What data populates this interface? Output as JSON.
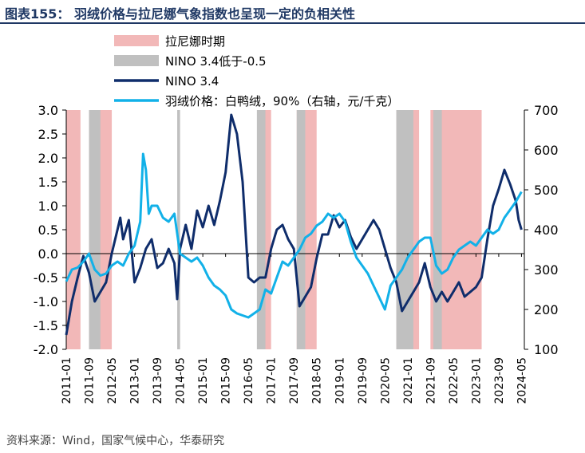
{
  "title": "图表155：  羽绒价格与拉尼娜气象指数也呈现一定的负相关性",
  "source": "资料来源：Wind，国家气候中心，华泰研究",
  "chart_data": {
    "type": "line",
    "legend": [
      {
        "name": "拉尼娜时期",
        "type": "band",
        "color": "#f2b8b8"
      },
      {
        "name": "NINO 3.4低于-0.5",
        "type": "band",
        "color": "#c0c0c0"
      },
      {
        "name": "NINO 3.4",
        "type": "line",
        "color": "#0f2d6b"
      },
      {
        "name": "羽绒价格：白鸭绒，90%（右轴，元/千克）",
        "type": "line",
        "color": "#12b1e8"
      }
    ],
    "y_left": {
      "min": -2.0,
      "max": 3.0,
      "ticks": [
        "3.0",
        "2.5",
        "2.0",
        "1.5",
        "1.0",
        "0.5",
        "0.0",
        "-0.5",
        "-1.0",
        "-1.5",
        "-2.0"
      ]
    },
    "y_right": {
      "min": 100,
      "max": 700,
      "ticks": [
        "700",
        "600",
        "500",
        "400",
        "300",
        "200",
        "100"
      ]
    },
    "x_range": [
      "2011-01",
      "2024-06"
    ],
    "x_ticks": [
      "2011-01",
      "2011-09",
      "2012-05",
      "2013-01",
      "2013-09",
      "2014-05",
      "2015-01",
      "2015-09",
      "2016-05",
      "2017-01",
      "2017-09",
      "2018-05",
      "2019-01",
      "2019-09",
      "2020-05",
      "2021-01",
      "2021-09",
      "2022-05",
      "2023-01",
      "2023-09",
      "2024-05"
    ],
    "la_nina_periods": [
      [
        "2011-01",
        "2011-05"
      ],
      [
        "2011-09",
        "2012-04"
      ],
      [
        "2016-09",
        "2016-12"
      ],
      [
        "2017-10",
        "2018-04"
      ],
      [
        "2020-09",
        "2021-04"
      ],
      [
        "2021-09",
        "2023-02"
      ]
    ],
    "nino_below_periods": [
      [
        "2011-09",
        "2011-12"
      ],
      [
        "2014-04",
        "2014-04"
      ],
      [
        "2016-08",
        "2016-10"
      ],
      [
        "2017-10",
        "2017-12"
      ],
      [
        "2020-09",
        "2021-02"
      ],
      [
        "2021-10",
        "2021-12"
      ]
    ],
    "series": [
      {
        "name": "NINO 3.4",
        "axis": "left",
        "points": [
          [
            "2011-01",
            -1.7
          ],
          [
            "2011-03",
            -1.0
          ],
          [
            "2011-05",
            -0.5
          ],
          [
            "2011-07",
            -0.05
          ],
          [
            "2011-09",
            -0.4
          ],
          [
            "2011-11",
            -1.0
          ],
          [
            "2012-01",
            -0.8
          ],
          [
            "2012-03",
            -0.6
          ],
          [
            "2012-05",
            0.0
          ],
          [
            "2012-07",
            0.5
          ],
          [
            "2012-08",
            0.75
          ],
          [
            "2012-09",
            0.3
          ],
          [
            "2012-11",
            0.7
          ],
          [
            "2013-01",
            -0.6
          ],
          [
            "2013-03",
            -0.3
          ],
          [
            "2013-05",
            0.1
          ],
          [
            "2013-07",
            0.3
          ],
          [
            "2013-09",
            -0.3
          ],
          [
            "2013-11",
            -0.2
          ],
          [
            "2014-01",
            0.1
          ],
          [
            "2014-03",
            -0.2
          ],
          [
            "2014-04",
            -0.95
          ],
          [
            "2014-05",
            0.1
          ],
          [
            "2014-07",
            0.6
          ],
          [
            "2014-09",
            0.1
          ],
          [
            "2014-11",
            0.9
          ],
          [
            "2015-01",
            0.55
          ],
          [
            "2015-03",
            1.0
          ],
          [
            "2015-05",
            0.6
          ],
          [
            "2015-07",
            1.1
          ],
          [
            "2015-09",
            1.7
          ],
          [
            "2015-11",
            2.9
          ],
          [
            "2016-01",
            2.5
          ],
          [
            "2016-03",
            1.5
          ],
          [
            "2016-05",
            -0.5
          ],
          [
            "2016-07",
            -0.6
          ],
          [
            "2016-09",
            -0.5
          ],
          [
            "2016-11",
            -0.5
          ],
          [
            "2017-01",
            0.1
          ],
          [
            "2017-03",
            0.5
          ],
          [
            "2017-05",
            0.6
          ],
          [
            "2017-07",
            0.3
          ],
          [
            "2017-09",
            0.1
          ],
          [
            "2017-11",
            -1.1
          ],
          [
            "2018-01",
            -0.9
          ],
          [
            "2018-03",
            -0.7
          ],
          [
            "2018-05",
            -0.1
          ],
          [
            "2018-07",
            0.4
          ],
          [
            "2018-09",
            0.4
          ],
          [
            "2018-11",
            0.8
          ],
          [
            "2019-01",
            0.55
          ],
          [
            "2019-03",
            0.7
          ],
          [
            "2019-05",
            0.35
          ],
          [
            "2019-07",
            0.1
          ],
          [
            "2019-09",
            0.3
          ],
          [
            "2019-11",
            0.5
          ],
          [
            "2020-01",
            0.7
          ],
          [
            "2020-03",
            0.5
          ],
          [
            "2020-05",
            0.1
          ],
          [
            "2020-07",
            -0.3
          ],
          [
            "2020-09",
            -0.6
          ],
          [
            "2020-11",
            -1.2
          ],
          [
            "2021-01",
            -1.0
          ],
          [
            "2021-03",
            -0.8
          ],
          [
            "2021-05",
            -0.6
          ],
          [
            "2021-07",
            -0.2
          ],
          [
            "2021-09",
            -0.7
          ],
          [
            "2021-11",
            -1.0
          ],
          [
            "2022-01",
            -0.8
          ],
          [
            "2022-03",
            -1.0
          ],
          [
            "2022-05",
            -0.8
          ],
          [
            "2022-07",
            -0.6
          ],
          [
            "2022-09",
            -0.9
          ],
          [
            "2022-11",
            -0.8
          ],
          [
            "2023-01",
            -0.7
          ],
          [
            "2023-03",
            -0.5
          ],
          [
            "2023-05",
            0.3
          ],
          [
            "2023-07",
            1.0
          ],
          [
            "2023-09",
            1.35
          ],
          [
            "2023-11",
            1.75
          ],
          [
            "2024-01",
            1.45
          ],
          [
            "2024-03",
            1.1
          ],
          [
            "2024-04",
            0.7
          ],
          [
            "2024-05",
            0.5
          ]
        ]
      },
      {
        "name": "羽绒价格：白鸭绒，90%（右轴，元/千克）",
        "axis": "right",
        "points": [
          [
            "2011-01",
            270
          ],
          [
            "2011-03",
            300
          ],
          [
            "2011-05",
            305
          ],
          [
            "2011-07",
            320
          ],
          [
            "2011-09",
            340
          ],
          [
            "2011-11",
            300
          ],
          [
            "2012-01",
            285
          ],
          [
            "2012-03",
            290
          ],
          [
            "2012-05",
            310
          ],
          [
            "2012-07",
            320
          ],
          [
            "2012-09",
            310
          ],
          [
            "2012-11",
            340
          ],
          [
            "2013-01",
            360
          ],
          [
            "2013-03",
            420
          ],
          [
            "2013-04",
            590
          ],
          [
            "2013-05",
            550
          ],
          [
            "2013-06",
            440
          ],
          [
            "2013-07",
            460
          ],
          [
            "2013-09",
            460
          ],
          [
            "2013-11",
            430
          ],
          [
            "2014-01",
            420
          ],
          [
            "2014-03",
            440
          ],
          [
            "2014-05",
            340
          ],
          [
            "2014-07",
            330
          ],
          [
            "2014-09",
            320
          ],
          [
            "2014-11",
            330
          ],
          [
            "2015-01",
            310
          ],
          [
            "2015-03",
            280
          ],
          [
            "2015-05",
            260
          ],
          [
            "2015-07",
            250
          ],
          [
            "2015-09",
            235
          ],
          [
            "2015-11",
            200
          ],
          [
            "2016-01",
            190
          ],
          [
            "2016-03",
            185
          ],
          [
            "2016-05",
            180
          ],
          [
            "2016-07",
            190
          ],
          [
            "2016-09",
            200
          ],
          [
            "2016-11",
            250
          ],
          [
            "2017-01",
            240
          ],
          [
            "2017-03",
            280
          ],
          [
            "2017-05",
            320
          ],
          [
            "2017-07",
            310
          ],
          [
            "2017-09",
            330
          ],
          [
            "2017-11",
            350
          ],
          [
            "2018-01",
            380
          ],
          [
            "2018-03",
            390
          ],
          [
            "2018-05",
            410
          ],
          [
            "2018-07",
            420
          ],
          [
            "2018-09",
            440
          ],
          [
            "2018-11",
            430
          ],
          [
            "2019-01",
            440
          ],
          [
            "2019-03",
            420
          ],
          [
            "2019-05",
            370
          ],
          [
            "2019-07",
            330
          ],
          [
            "2019-09",
            310
          ],
          [
            "2019-11",
            290
          ],
          [
            "2020-01",
            260
          ],
          [
            "2020-03",
            230
          ],
          [
            "2020-05",
            200
          ],
          [
            "2020-07",
            260
          ],
          [
            "2020-09",
            280
          ],
          [
            "2020-11",
            300
          ],
          [
            "2021-01",
            330
          ],
          [
            "2021-03",
            350
          ],
          [
            "2021-05",
            370
          ],
          [
            "2021-07",
            380
          ],
          [
            "2021-09",
            380
          ],
          [
            "2021-11",
            310
          ],
          [
            "2022-01",
            290
          ],
          [
            "2022-03",
            300
          ],
          [
            "2022-05",
            330
          ],
          [
            "2022-07",
            350
          ],
          [
            "2022-09",
            360
          ],
          [
            "2022-11",
            370
          ],
          [
            "2023-01",
            360
          ],
          [
            "2023-03",
            380
          ],
          [
            "2023-05",
            400
          ],
          [
            "2023-07",
            390
          ],
          [
            "2023-09",
            400
          ],
          [
            "2023-11",
            430
          ],
          [
            "2024-01",
            450
          ],
          [
            "2024-03",
            470
          ],
          [
            "2024-05",
            495
          ]
        ]
      }
    ]
  }
}
